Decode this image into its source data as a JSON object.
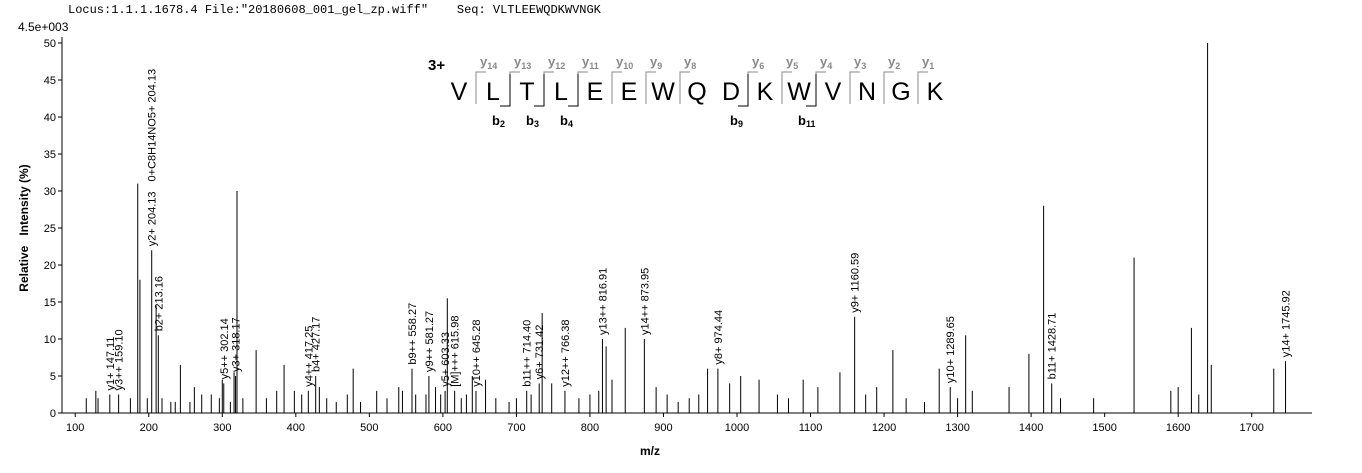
{
  "chart_data": {
    "type": "spectrum",
    "header": "Locus:1.1.1.1678.4 File:\"20180608_001_gel_zp.wiff\"    Seq: VLTLEEWQDKWVNGK",
    "scale_label": "4.5e+003",
    "y_label": "Relative   Intensity (%)",
    "x_label": "m/z",
    "xlim": [
      82,
      1782
    ],
    "ylim": [
      0,
      50
    ],
    "xticks": [
      100,
      200,
      300,
      400,
      500,
      600,
      700,
      800,
      900,
      1000,
      1100,
      1200,
      1300,
      1400,
      1500,
      1600,
      1700
    ],
    "yticks": [
      0,
      5,
      10,
      15,
      20,
      25,
      30,
      35,
      40,
      45,
      50
    ],
    "color": "#000000",
    "x": [
      115,
      128,
      131,
      147,
      159,
      175,
      185,
      188,
      198,
      204,
      210,
      213,
      218,
      230,
      236,
      243,
      256,
      262,
      272,
      285,
      296,
      300,
      302,
      311,
      316,
      318,
      320,
      328,
      346,
      360,
      374,
      384,
      398,
      408,
      417,
      427,
      432,
      442,
      455,
      470,
      478,
      488,
      510,
      524,
      540,
      545,
      558,
      563,
      577,
      581,
      590,
      597,
      603,
      606,
      616,
      625,
      632,
      640,
      645,
      658,
      672,
      690,
      700,
      714,
      720,
      731,
      735,
      748,
      766,
      785,
      800,
      812,
      817,
      822,
      830,
      848,
      874,
      890,
      905,
      920,
      935,
      948,
      960,
      974,
      990,
      1005,
      1030,
      1055,
      1070,
      1090,
      1110,
      1140,
      1160,
      1175,
      1190,
      1212,
      1230,
      1255,
      1275,
      1290,
      1300,
      1311,
      1320,
      1370,
      1397,
      1417,
      1428,
      1440,
      1485,
      1540,
      1590,
      1600,
      1618,
      1628,
      1640,
      1645,
      1730,
      1746
    ],
    "values": [
      2,
      3,
      2,
      2.5,
      2.5,
      2,
      31,
      18,
      2,
      22,
      14.5,
      10.5,
      2,
      1.5,
      1.5,
      6.5,
      1.5,
      3.5,
      2.5,
      2.5,
      2,
      4.5,
      4,
      1.5,
      5.5,
      5,
      30,
      2,
      8.5,
      2,
      3,
      6.5,
      3,
      2.5,
      3,
      5,
      3.5,
      2,
      1.5,
      2.5,
      6,
      1.5,
      3,
      2,
      3.5,
      3,
      6,
      2.5,
      2.5,
      5,
      3.5,
      2.5,
      3,
      15.5,
      3,
      2,
      2.5,
      5,
      3,
      4.5,
      2,
      1.5,
      2,
      3,
      2.5,
      4,
      13.5,
      4,
      3,
      2,
      2.5,
      3,
      10,
      9,
      4.5,
      11.5,
      10,
      3.5,
      2.5,
      1.5,
      2,
      2.5,
      6,
      6,
      4,
      5,
      4.5,
      2.5,
      2,
      4.5,
      3.5,
      5.5,
      13,
      2.5,
      3.5,
      8.5,
      2,
      1.5,
      6,
      3.5,
      2,
      10.5,
      3,
      3.5,
      8,
      28,
      4,
      2,
      2,
      21,
      3,
      3.5,
      11.5,
      2.5,
      50,
      6.5,
      6,
      7
    ],
    "annotations": [
      {
        "text": "y1+ 147.11",
        "mz": 147,
        "intensity": 2.5,
        "color": "#999999"
      },
      {
        "text": "y3++ 159.10",
        "mz": 159,
        "intensity": 2.5,
        "color": "#999999"
      },
      {
        "text": "y2+ 204.13",
        "mz": 204,
        "intensity": 22,
        "color": "#999999"
      },
      {
        "text": "0+C8H14NO5+ 204.13",
        "mz": 204,
        "intensity": 22,
        "color": "#000000"
      },
      {
        "text": "b2+ 213.16",
        "mz": 213,
        "intensity": 10.5,
        "color": "#000000"
      },
      {
        "text": "y5++ 302.14",
        "mz": 302,
        "intensity": 4,
        "color": "#999999"
      },
      {
        "text": "y3+ 318.17",
        "mz": 318,
        "intensity": 5,
        "color": "#999999"
      },
      {
        "text": "y4++ 417.25",
        "mz": 417,
        "intensity": 3,
        "color": "#999999"
      },
      {
        "text": "b4+ 427.17",
        "mz": 427,
        "intensity": 5,
        "color": "#000000"
      },
      {
        "text": "b9++ 558.27",
        "mz": 558,
        "intensity": 6,
        "color": "#000000"
      },
      {
        "text": "y9++ 581.27",
        "mz": 581,
        "intensity": 5,
        "color": "#999999"
      },
      {
        "text": "y5+ 603.33",
        "mz": 603,
        "intensity": 3,
        "color": "#999999"
      },
      {
        "text": "[M]+++ 615.98",
        "mz": 616,
        "intensity": 3,
        "color": "#999999"
      },
      {
        "text": "y10++ 645.28",
        "mz": 645,
        "intensity": 3,
        "color": "#999999"
      },
      {
        "text": "b11++ 714.40",
        "mz": 714,
        "intensity": 3,
        "color": "#000000"
      },
      {
        "text": "y6+ 731.42",
        "mz": 731,
        "intensity": 4,
        "color": "#999999"
      },
      {
        "text": "y12++ 766.38",
        "mz": 766,
        "intensity": 3,
        "color": "#999999"
      },
      {
        "text": "y13++ 816.91",
        "mz": 817,
        "intensity": 10,
        "color": "#999999"
      },
      {
        "text": "y14++ 873.95",
        "mz": 874,
        "intensity": 10,
        "color": "#999999"
      },
      {
        "text": "y8+ 974.44",
        "mz": 974,
        "intensity": 6,
        "color": "#999999"
      },
      {
        "text": "y9+ 1160.59",
        "mz": 1160,
        "intensity": 13,
        "color": "#999999"
      },
      {
        "text": "y10+ 1289.65",
        "mz": 1290,
        "intensity": 3.5,
        "color": "#999999"
      },
      {
        "text": "b11+ 1428.71",
        "mz": 1428,
        "intensity": 4,
        "color": "#000000"
      },
      {
        "text": "y14+ 1745.92",
        "mz": 1746,
        "intensity": 7,
        "color": "#999999"
      }
    ],
    "sequence": {
      "charge": "3+",
      "residues": [
        "V",
        "L",
        "T",
        "L",
        "E",
        "E",
        "W",
        "Q",
        "D",
        "K",
        "W",
        "V",
        "N",
        "G",
        "K"
      ],
      "y_letter": "y",
      "b_letter": "b",
      "y_ions": [
        14,
        13,
        12,
        11,
        10,
        9,
        8,
        6,
        5,
        4,
        3,
        2,
        1
      ],
      "b_ions": [
        2,
        3,
        4,
        9,
        11
      ]
    }
  }
}
